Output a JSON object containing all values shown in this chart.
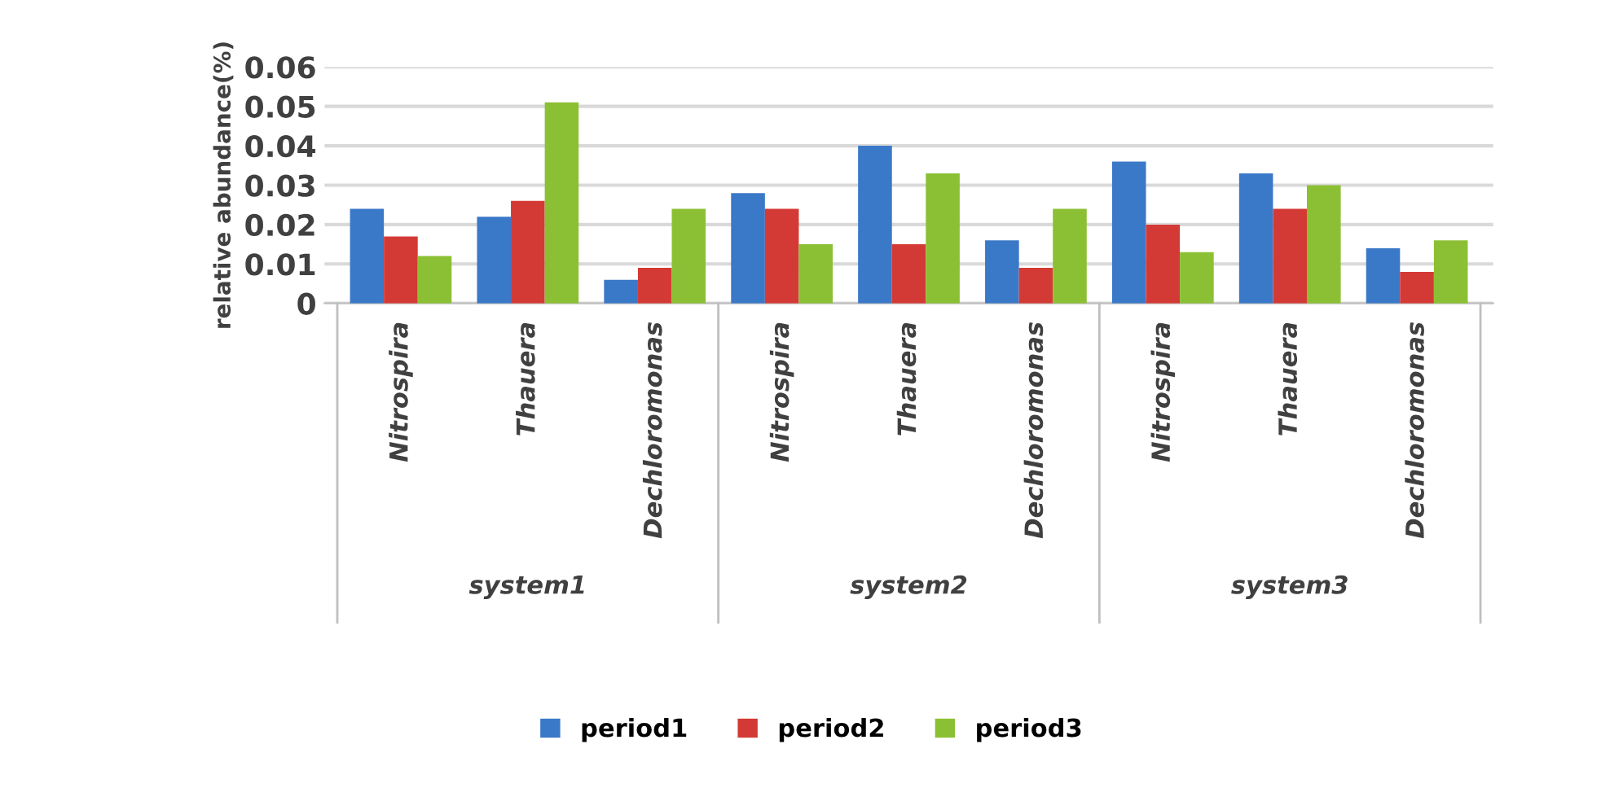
{
  "chart_data": {
    "type": "bar",
    "ylabel": "relative abundance(%)",
    "categories": [
      "Nitrospira",
      "Thauera",
      "Dechloromonas",
      "Nitrospira",
      "Thauera",
      "Dechloromonas",
      "Nitrospira",
      "Thauera",
      "Dechloromonas"
    ],
    "series": [
      {
        "name": "period1",
        "color": "#3a78c8",
        "values": [
          0.024,
          0.022,
          0.006,
          0.028,
          0.04,
          0.016,
          0.036,
          0.033,
          0.014
        ]
      },
      {
        "name": "period2",
        "color": "#d43a35",
        "values": [
          0.017,
          0.026,
          0.009,
          0.024,
          0.015,
          0.009,
          0.02,
          0.024,
          0.008
        ]
      },
      {
        "name": "period3",
        "color": "#8cc034",
        "values": [
          0.012,
          0.051,
          0.024,
          0.015,
          0.033,
          0.024,
          0.013,
          0.03,
          0.016
        ]
      }
    ],
    "annotations": [
      "system1",
      "system2",
      "system3"
    ],
    "ylim": [
      0,
      0.06
    ],
    "yticks": [
      {
        "value": 0,
        "label": "0"
      },
      0.01,
      0.02,
      0.03,
      0.04,
      0.05,
      0.06
    ],
    "grid": "y",
    "legend": "bottom"
  }
}
